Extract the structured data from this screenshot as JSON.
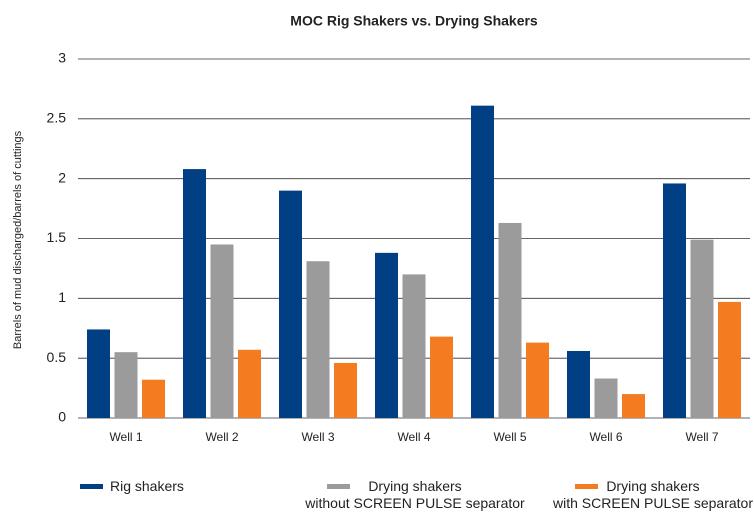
{
  "chart_data": {
    "type": "bar",
    "title": "MOC Rig Shakers vs. Drying Shakers",
    "y_label": "Barrels of mud discharged/barrels of cuttings",
    "categories": [
      "Well 1",
      "Well 2",
      "Well 3",
      "Well 4",
      "Well 5",
      "Well 6",
      "Well 7"
    ],
    "series": [
      {
        "name": "Rig shakers",
        "color": "#003f84",
        "values": [
          0.74,
          2.08,
          1.9,
          1.38,
          2.61,
          0.56,
          1.96
        ]
      },
      {
        "name": "Drying shakers\nwithout SCREEN PULSE separator",
        "color": "#9b9b9b",
        "values": [
          0.55,
          1.45,
          1.31,
          1.2,
          1.63,
          0.33,
          1.49
        ]
      },
      {
        "name": "Drying shakers\nwith SCREEN PULSE separator",
        "color": "#f47b20",
        "values": [
          0.32,
          0.57,
          0.46,
          0.68,
          0.63,
          0.2,
          0.97
        ]
      }
    ],
    "ylim": [
      0,
      3
    ],
    "yticks": [
      0,
      0.5,
      1,
      1.5,
      2,
      2.5,
      3
    ],
    "grid": true,
    "legend": "bottom"
  }
}
